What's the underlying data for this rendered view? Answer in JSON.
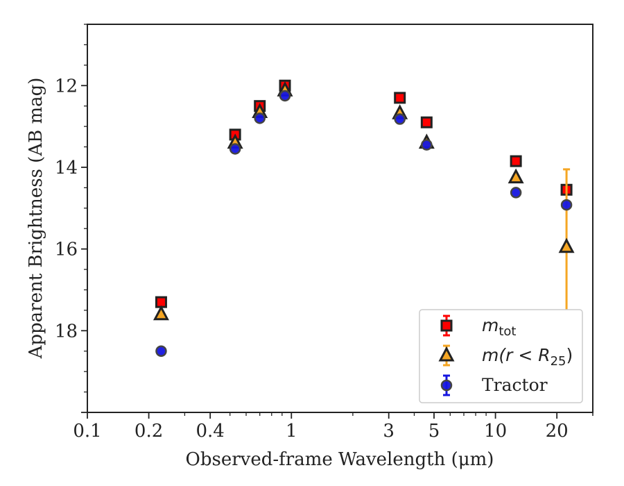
{
  "chart_data": {
    "type": "scatter",
    "xlabel": "Observed-frame Wavelength (μm)",
    "ylabel": "Apparent Brightness (AB mag)",
    "x_scale": "log",
    "xlim": [
      0.1,
      30
    ],
    "ylim": [
      20,
      10.5
    ],
    "y_inverted": true,
    "x_ticks": [
      0.1,
      0.2,
      0.4,
      1,
      3,
      5,
      10,
      20
    ],
    "x_tick_labels": [
      "0.1",
      "0.2",
      "0.4",
      "1",
      "3",
      "5",
      "10",
      "20"
    ],
    "y_ticks": [
      12,
      14,
      16,
      18
    ],
    "y_tick_labels": [
      "12",
      "14",
      "16",
      "18"
    ],
    "grid": false,
    "legend_position": "lower right",
    "series": [
      {
        "name": "m_tot",
        "legend_label": {
          "main": "m",
          "sub": "tot"
        },
        "marker": "square",
        "color": "#ff0000",
        "edge_color": "#222222",
        "points": [
          {
            "x": 0.23,
            "y": 17.3,
            "err": 0.05
          },
          {
            "x": 0.53,
            "y": 13.2,
            "err": 0.05
          },
          {
            "x": 0.7,
            "y": 12.5,
            "err": 0.05
          },
          {
            "x": 0.93,
            "y": 12.0,
            "err": 0.05
          },
          {
            "x": 3.4,
            "y": 12.3,
            "err": 0.05
          },
          {
            "x": 4.6,
            "y": 12.9,
            "err": 0.05
          },
          {
            "x": 12.6,
            "y": 13.85,
            "err": 0.05
          },
          {
            "x": 22.3,
            "y": 14.55,
            "err": 0.05
          }
        ]
      },
      {
        "name": "m(r < R_25)",
        "legend_label": {
          "main": "m(r < R",
          "sub": "25",
          "after": ")"
        },
        "marker": "triangle",
        "color": "#f5a623",
        "edge_color": "#222222",
        "points": [
          {
            "x": 0.23,
            "y": 17.6,
            "err": 0.05
          },
          {
            "x": 0.53,
            "y": 13.4,
            "err": 0.05
          },
          {
            "x": 0.7,
            "y": 12.65,
            "err": 0.05
          },
          {
            "x": 0.93,
            "y": 12.12,
            "err": 0.05
          },
          {
            "x": 3.4,
            "y": 12.68,
            "err": 0.05
          },
          {
            "x": 4.6,
            "y": 13.4,
            "err": 0.05
          },
          {
            "x": 12.6,
            "y": 14.25,
            "err": 0.05
          },
          {
            "x": 22.3,
            "y": 15.95,
            "err": 1.9
          }
        ]
      },
      {
        "name": "Tractor",
        "legend_label": {
          "main": "Tractor"
        },
        "marker": "circle",
        "color": "#1515e0",
        "edge_color": "#444444",
        "points": [
          {
            "x": 0.23,
            "y": 18.5,
            "err": 0.05
          },
          {
            "x": 0.53,
            "y": 13.55,
            "err": 0.05
          },
          {
            "x": 0.7,
            "y": 12.8,
            "err": 0.05
          },
          {
            "x": 0.93,
            "y": 12.25,
            "err": 0.05
          },
          {
            "x": 3.4,
            "y": 12.82,
            "err": 0.05
          },
          {
            "x": 4.6,
            "y": 13.45,
            "err": 0.05
          },
          {
            "x": 12.6,
            "y": 14.62,
            "err": 0.05
          },
          {
            "x": 22.3,
            "y": 14.92,
            "err": 0.05
          }
        ]
      }
    ]
  }
}
